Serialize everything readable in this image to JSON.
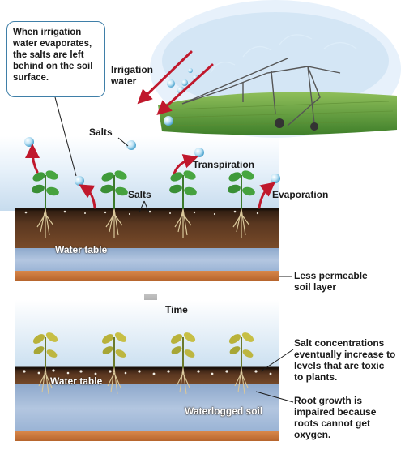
{
  "callout": {
    "text": "When irrigation water evaporates, the salts  are left behind on the soil surface."
  },
  "labels": {
    "irrigation_water_line1": "Irrigation",
    "irrigation_water_line2": "water",
    "salts_upper": "Salts",
    "salts_mid": "Salts",
    "transpiration": "Transpiration",
    "evaporation": "Evaporation",
    "water_table_upper": "Water table",
    "less_permeable_line1": "Less permeable",
    "less_permeable_line2": "soil layer",
    "time": "Time",
    "salt_conc_line1": "Salt concentrations",
    "salt_conc_line2": "eventually increase to",
    "salt_conc_line3": "levels that are toxic",
    "salt_conc_line4": "to plants.",
    "water_table_lower": "Water table",
    "waterlogged_soil": "Waterlogged soil",
    "root_growth_line1": "Root growth is",
    "root_growth_line2": "impaired because",
    "root_growth_line3": "roots cannot get",
    "root_growth_line4": "oxygen."
  },
  "colors": {
    "arrow_red": "#c0182c",
    "soil_dark": "#3b2616",
    "soil_brown": "#7a4a26",
    "water_table_blue": "#9fb7d6",
    "less_permeable": "#c8783c",
    "sky_blue": "#cfe3f3",
    "callout_border": "#3f7fa8",
    "field_green": "#5f9a3a",
    "time_arrow": "#9a9a9a",
    "healthy_leaf": "#3f9a3a",
    "stressed_leaf": "#b9b23a"
  }
}
